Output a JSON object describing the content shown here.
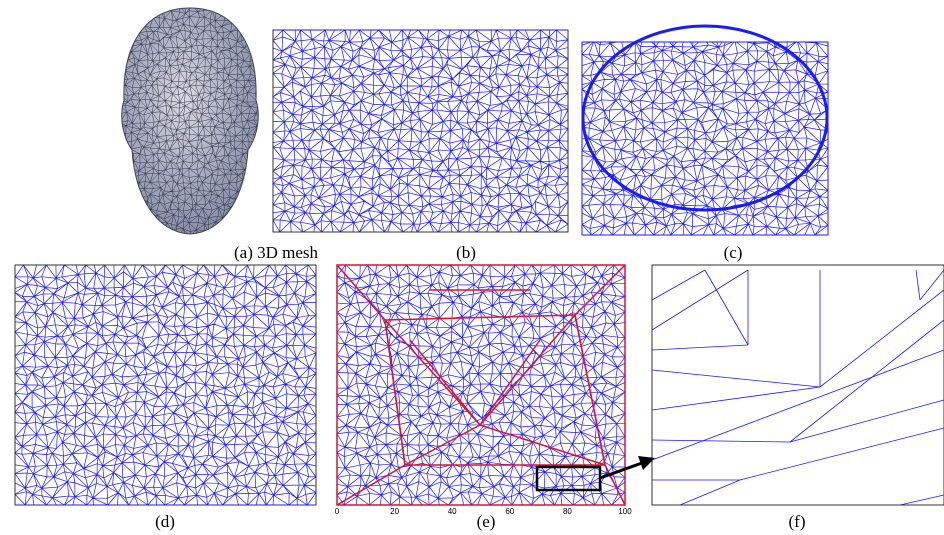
{
  "figure": {
    "captions": [
      "(a) 3D mesh",
      "(b)",
      "(c)",
      "(d)",
      "(e)",
      "(f)"
    ],
    "panel_e_xticks": [
      "0",
      "20",
      "40",
      "60",
      "80",
      "100"
    ]
  }
}
